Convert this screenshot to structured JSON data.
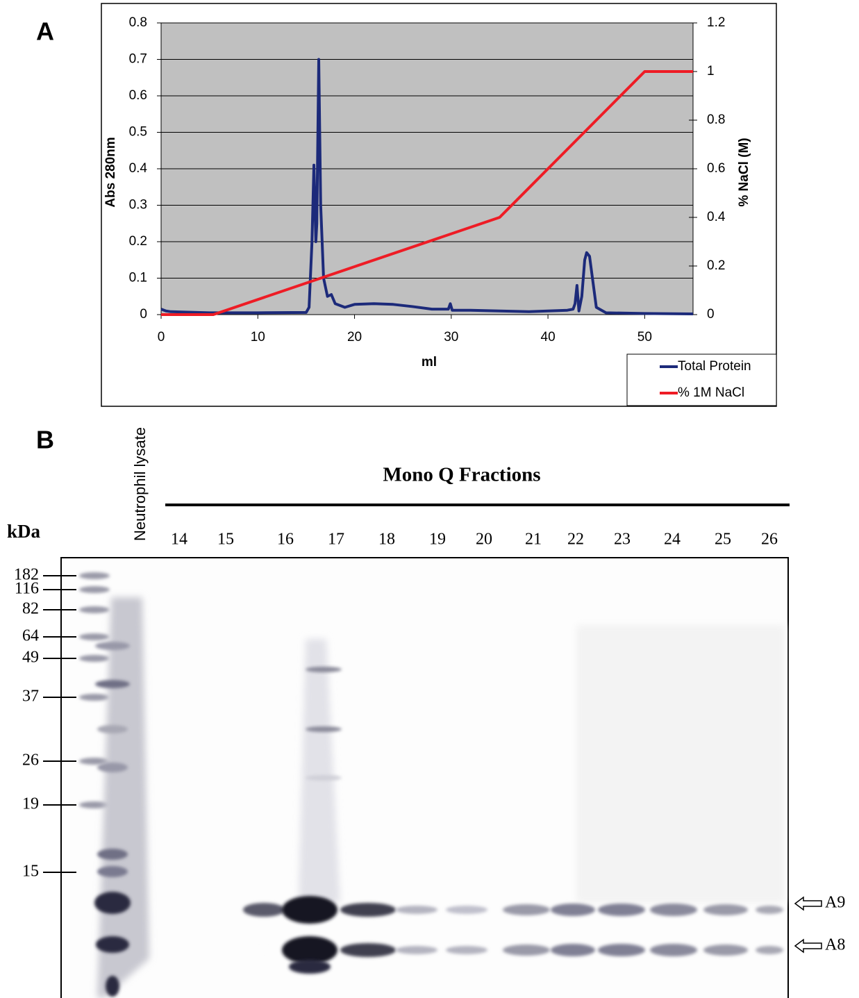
{
  "panels": {
    "a": "A",
    "b": "B"
  },
  "chart_data": {
    "type": "line",
    "x_label": "ml",
    "y_label": "Abs 280nm",
    "y2_label": "% NaCl (M)",
    "xlim": [
      0,
      55
    ],
    "xticks": [
      0,
      10,
      20,
      30,
      40,
      50
    ],
    "ylim": [
      0,
      0.8
    ],
    "yticks": [
      0,
      0.1,
      0.2,
      0.3,
      0.4,
      0.5,
      0.6,
      0.7,
      0.8
    ],
    "y2lim": [
      0,
      1.2
    ],
    "y2ticks": [
      0,
      0.2,
      0.4,
      0.6,
      0.8,
      1,
      1.2
    ],
    "grid": true,
    "background": "#c0c0c0",
    "legend": "bottom-right",
    "series": [
      {
        "name": "Total Protein",
        "color": "#1c2a7a",
        "x": [
          0,
          0.5,
          1,
          5,
          10,
          15,
          15.3,
          15.6,
          15.8,
          16.0,
          16.1,
          16.3,
          16.5,
          16.8,
          17.2,
          17.6,
          18,
          19,
          20,
          22,
          24,
          26,
          28,
          29.7,
          29.9,
          30.1,
          32,
          35,
          38,
          40,
          42,
          42.6,
          42.8,
          43.0,
          43.2,
          43.5,
          43.8,
          44,
          44.3,
          44.6,
          45,
          46,
          50,
          55
        ],
        "values": [
          0.015,
          0.01,
          0.008,
          0.005,
          0.005,
          0.006,
          0.02,
          0.2,
          0.41,
          0.2,
          0.25,
          0.7,
          0.3,
          0.1,
          0.05,
          0.055,
          0.03,
          0.02,
          0.028,
          0.03,
          0.028,
          0.022,
          0.015,
          0.015,
          0.03,
          0.012,
          0.012,
          0.01,
          0.008,
          0.01,
          0.012,
          0.015,
          0.03,
          0.08,
          0.01,
          0.05,
          0.15,
          0.17,
          0.16,
          0.1,
          0.02,
          0.005,
          0.003,
          0.002
        ]
      },
      {
        "name": "% 1M NaCl",
        "color": "#ee1c25",
        "axis": "y2",
        "x": [
          0,
          5.4,
          35,
          50,
          55
        ],
        "values": [
          0,
          0,
          0.4,
          1,
          1
        ]
      }
    ]
  },
  "gel": {
    "lane_label": "Neutrophil lysate",
    "title": "Mono Q Fractions",
    "unit": "kDa",
    "fractions": [
      "14",
      "15",
      "16",
      "17",
      "18",
      "19",
      "20",
      "21",
      "22",
      "23",
      "24",
      "25",
      "26"
    ],
    "markers": [
      "182",
      "116",
      "82",
      "64",
      "49",
      "37",
      "26",
      "19",
      "15"
    ],
    "band_labels": [
      "A9",
      "A8"
    ]
  }
}
